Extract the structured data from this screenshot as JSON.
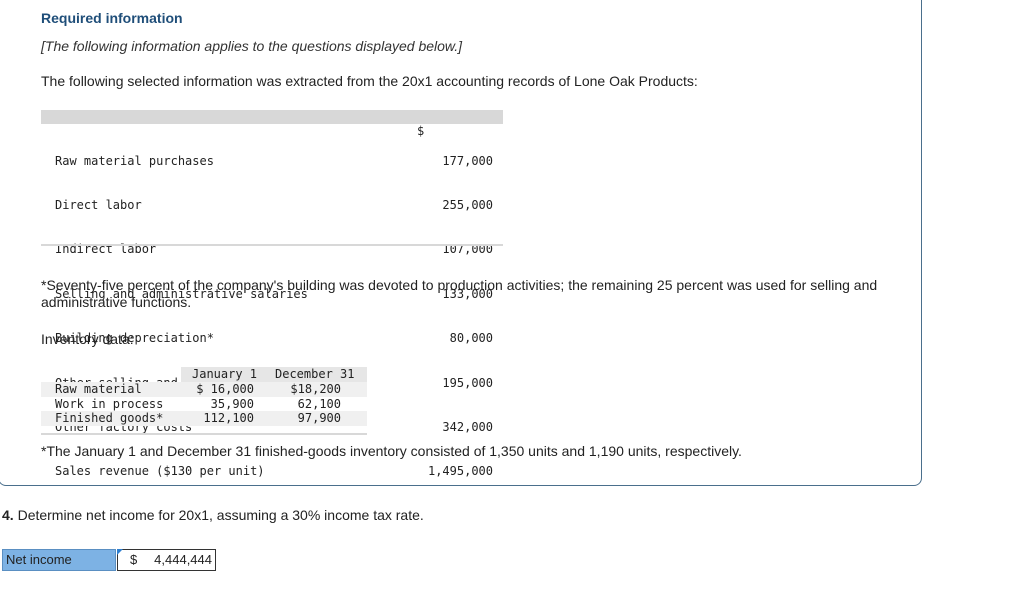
{
  "header": {
    "title": "Required information",
    "note": "[The following information applies to the questions displayed below.]",
    "intro": "The following selected information was extracted from the 20x1 accounting records of Lone Oak Products:"
  },
  "records": {
    "currency_symbol": "$",
    "rows": [
      {
        "label": "Raw material purchases",
        "value": "177,000"
      },
      {
        "label": "Direct labor",
        "value": "255,000"
      },
      {
        "label": "Indirect labor",
        "value": "107,000"
      },
      {
        "label": "Selling and administrative salaries",
        "value": "133,000"
      },
      {
        "label": "Building depreciation*",
        "value": "80,000"
      },
      {
        "label": "Other selling and administrative expenses",
        "value": "195,000"
      },
      {
        "label": "Other factory costs",
        "value": "342,000"
      },
      {
        "label": "Sales revenue ($130 per unit)",
        "value": "1,495,000"
      }
    ]
  },
  "footnote_building": "*Seventy-five percent of the company's building was devoted to production activities; the remaining 25 percent was used for selling and administrative functions.",
  "inventory": {
    "label": "Inventory data:",
    "columns": [
      "January 1",
      "December 31"
    ],
    "rows": [
      {
        "label": "Raw material",
        "jan": "$ 16,000",
        "dec": "$18,200"
      },
      {
        "label": "Work in process",
        "jan": "35,900",
        "dec": "62,100"
      },
      {
        "label": "Finished goods*",
        "jan": "112,100",
        "dec": "97,900"
      }
    ]
  },
  "footnote_inventory": "*The January 1 and December 31 finished-goods inventory consisted of 1,350 units and 1,190 units, respectively.",
  "question": {
    "number": "4.",
    "text": " Determine net income for 20x1, assuming a 30% income tax rate."
  },
  "answer": {
    "label": "Net income",
    "currency": "$",
    "value": "4,444,444"
  }
}
